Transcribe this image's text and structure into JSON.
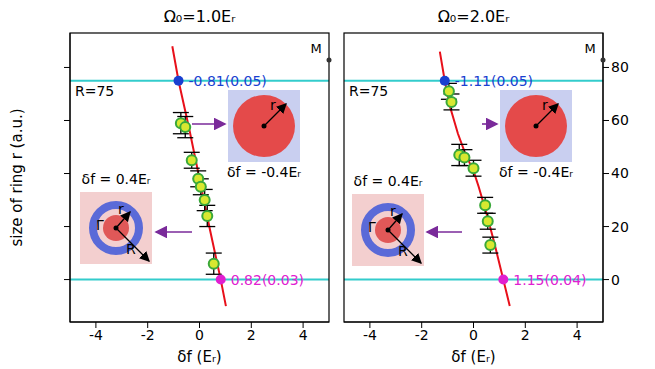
{
  "chart_data": [
    {
      "type": "scatter",
      "title": "Ω₀=1.0Eᵣ",
      "x_label": "δf (Eᵣ)",
      "y_label": "size of ring r (a.u.)",
      "xlim": [
        -5,
        5
      ],
      "ylim": [
        -16,
        93
      ],
      "xticks": [
        -4,
        -2,
        0,
        2,
        4
      ],
      "yticks": [
        0,
        20,
        40,
        60,
        80
      ],
      "tick_labels": "x",
      "series": [
        {
          "type": "line",
          "color": "#e8101a",
          "x": [
            1.02,
            0.82,
            0.4,
            0,
            -0.4,
            -0.81,
            -1.05
          ],
          "values": [
            -10,
            0,
            19,
            38,
            57,
            75,
            88
          ]
        },
        {
          "type": "scatter",
          "marker": "circle",
          "color": "#3aa83a",
          "x": [
            -0.72,
            -0.55,
            -0.3,
            -0.05,
            0.05,
            0.2,
            0.3,
            0.55
          ],
          "values": [
            59,
            57.5,
            45,
            38,
            35,
            30,
            24,
            6
          ],
          "errors": [
            4,
            4,
            3,
            3,
            3,
            4,
            4,
            4
          ]
        }
      ],
      "reference_lines": [
        {
          "y": 75,
          "color": "#33cccc",
          "label": "R=75"
        },
        {
          "y": 0,
          "color": "#33cccc"
        }
      ],
      "points": [
        {
          "x": -0.81,
          "y": 75,
          "label": "-0.81(0.05)",
          "color": "#1a3fd0"
        },
        {
          "x": 0.82,
          "y": 0,
          "label": "0.82(0.03)",
          "color": "#e020d0"
        }
      ],
      "insets": [
        {
          "label": "δf = 0.4Eᵣ",
          "texts": [
            "Γ",
            "R",
            "r"
          ]
        },
        {
          "label": "δf = -0.4Eᵣ",
          "texts": [
            "r"
          ]
        }
      ],
      "annotations": [
        "M"
      ]
    },
    {
      "type": "scatter",
      "title": "Ω₀=2.0Eᵣ",
      "x_label": "δf (Eᵣ)",
      "xlim": [
        -5,
        5
      ],
      "ylim": [
        -16,
        93
      ],
      "xticks": [
        -4,
        -2,
        0,
        2,
        4
      ],
      "yticks": [
        0,
        20,
        40,
        60,
        80
      ],
      "series": [
        {
          "type": "line",
          "color": "#e8101a",
          "x": [
            1.4,
            1.15,
            0.8,
            0.5,
            0.2,
            0,
            -0.3,
            -0.6,
            -0.9,
            -1.11,
            -1.3
          ],
          "values": [
            -10,
            0,
            14,
            25,
            35,
            41,
            47,
            55,
            65,
            75,
            86
          ]
        },
        {
          "type": "scatter",
          "marker": "circle",
          "color": "#3aa83a",
          "x": [
            -0.95,
            -0.85,
            -0.55,
            -0.35,
            0.0,
            0.45,
            0.55,
            0.65
          ],
          "values": [
            71,
            67,
            47,
            46,
            42,
            28,
            22,
            13
          ],
          "errors": [
            3,
            3,
            4,
            3,
            3,
            3,
            3,
            3
          ]
        }
      ],
      "reference_lines": [
        {
          "y": 75,
          "color": "#33cccc",
          "label": "R=75"
        },
        {
          "y": 0,
          "color": "#33cccc"
        }
      ],
      "points": [
        {
          "x": -1.11,
          "y": 75,
          "label": "-1.11(0.05)",
          "color": "#1a3fd0"
        },
        {
          "x": 1.15,
          "y": 0,
          "label": "1.15(0.04)",
          "color": "#e020d0"
        }
      ],
      "insets": [
        {
          "label": "δf = 0.4Eᵣ",
          "texts": [
            "Γ",
            "R",
            "r"
          ]
        },
        {
          "label": "δf = -0.4Eᵣ",
          "texts": [
            "r"
          ]
        }
      ],
      "annotations": [
        "M"
      ]
    }
  ]
}
